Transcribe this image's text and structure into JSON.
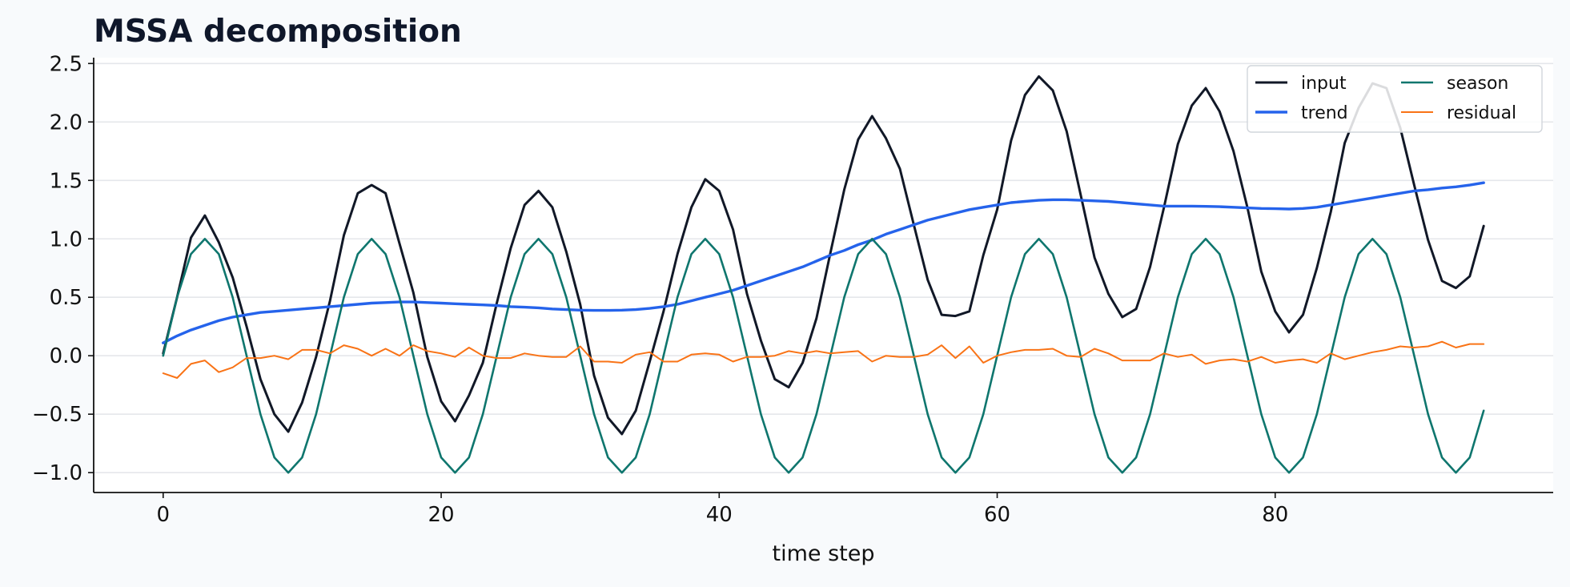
{
  "chart_data": {
    "type": "line",
    "title": "MSSA decomposition",
    "xlabel": "time step",
    "ylabel": "",
    "xlim": [
      -5,
      100
    ],
    "ylim": [
      -1.17,
      2.55
    ],
    "xticks": [
      0,
      20,
      40,
      60,
      80
    ],
    "xtick_labels": [
      "0",
      "20",
      "40",
      "60",
      "80"
    ],
    "yticks": [
      -1.0,
      -0.5,
      0.0,
      0.5,
      1.0,
      1.5,
      2.0,
      2.5
    ],
    "ytick_labels": [
      "−1.0",
      "−0.5",
      "0.0",
      "0.5",
      "1.0",
      "1.5",
      "2.0",
      "2.5"
    ],
    "grid": "horizontal",
    "legend": {
      "placement": "top-right",
      "columns": 2
    },
    "x": [
      0,
      1,
      2,
      3,
      4,
      5,
      6,
      7,
      8,
      9,
      10,
      11,
      12,
      13,
      14,
      15,
      16,
      17,
      18,
      19,
      20,
      21,
      22,
      23,
      24,
      25,
      26,
      27,
      28,
      29,
      30,
      31,
      32,
      33,
      34,
      35,
      36,
      37,
      38,
      39,
      40,
      41,
      42,
      43,
      44,
      45,
      46,
      47,
      48,
      49,
      50,
      51,
      52,
      53,
      54,
      55,
      56,
      57,
      58,
      59,
      60,
      61,
      62,
      63,
      64,
      65,
      66,
      67,
      68,
      69,
      70,
      71,
      72,
      73,
      74,
      75,
      76,
      77,
      78,
      79,
      80,
      81,
      82,
      83,
      84,
      85,
      86,
      87,
      88,
      89,
      90,
      91,
      92,
      93,
      94,
      95
    ],
    "series": [
      {
        "name": "input",
        "color": "#111827",
        "width": 3,
        "values": [
          0.02,
          0.5,
          1.01,
          1.2,
          0.97,
          0.67,
          0.25,
          -0.2,
          -0.5,
          -0.65,
          -0.4,
          -0.01,
          0.47,
          1.03,
          1.39,
          1.46,
          1.39,
          0.96,
          0.54,
          -0.01,
          -0.39,
          -0.56,
          -0.34,
          -0.06,
          0.45,
          0.92,
          1.29,
          1.41,
          1.27,
          0.89,
          0.44,
          -0.17,
          -0.53,
          -0.67,
          -0.47,
          -0.05,
          0.38,
          0.87,
          1.27,
          1.51,
          1.41,
          1.08,
          0.53,
          0.13,
          -0.2,
          -0.27,
          -0.06,
          0.32,
          0.88,
          1.42,
          1.85,
          2.05,
          1.86,
          1.6,
          1.12,
          0.65,
          0.35,
          0.34,
          0.38,
          0.86,
          1.25,
          1.84,
          2.23,
          2.39,
          2.27,
          1.92,
          1.38,
          0.84,
          0.53,
          0.33,
          0.4,
          0.76,
          1.27,
          1.81,
          2.14,
          2.29,
          2.09,
          1.75,
          1.27,
          0.72,
          0.38,
          0.2,
          0.35,
          0.75,
          1.23,
          1.82,
          2.12,
          2.33,
          2.29,
          1.95,
          1.46,
          0.99,
          0.64,
          0.58,
          0.68,
          1.11
        ]
      },
      {
        "name": "trend",
        "color": "#2563eb",
        "width": 3.4,
        "values": [
          0.11,
          0.17,
          0.22,
          0.26,
          0.3,
          0.33,
          0.35,
          0.37,
          0.38,
          0.39,
          0.4,
          0.41,
          0.42,
          0.43,
          0.44,
          0.45,
          0.455,
          0.46,
          0.46,
          0.455,
          0.45,
          0.445,
          0.44,
          0.435,
          0.43,
          0.42,
          0.415,
          0.41,
          0.4,
          0.395,
          0.39,
          0.388,
          0.388,
          0.39,
          0.395,
          0.405,
          0.42,
          0.44,
          0.47,
          0.5,
          0.53,
          0.56,
          0.6,
          0.64,
          0.68,
          0.72,
          0.76,
          0.81,
          0.86,
          0.9,
          0.95,
          0.99,
          1.04,
          1.08,
          1.12,
          1.16,
          1.19,
          1.22,
          1.25,
          1.27,
          1.29,
          1.31,
          1.32,
          1.33,
          1.335,
          1.335,
          1.33,
          1.325,
          1.32,
          1.31,
          1.3,
          1.29,
          1.28,
          1.28,
          1.28,
          1.278,
          1.275,
          1.27,
          1.265,
          1.26,
          1.258,
          1.255,
          1.26,
          1.27,
          1.29,
          1.31,
          1.33,
          1.35,
          1.37,
          1.39,
          1.41,
          1.42,
          1.435,
          1.445,
          1.46,
          1.48
        ]
      },
      {
        "name": "season",
        "color": "#0f766e",
        "width": 2.6,
        "values": [
          0.0,
          0.5,
          0.87,
          1.0,
          0.87,
          0.5,
          0.0,
          -0.5,
          -0.87,
          -1.0,
          -0.87,
          -0.5,
          0.0,
          0.5,
          0.87,
          1.0,
          0.87,
          0.5,
          0.0,
          -0.5,
          -0.87,
          -1.0,
          -0.87,
          -0.5,
          0.0,
          0.5,
          0.87,
          1.0,
          0.87,
          0.5,
          0.0,
          -0.5,
          -0.87,
          -1.0,
          -0.87,
          -0.5,
          0.0,
          0.5,
          0.87,
          1.0,
          0.87,
          0.5,
          0.0,
          -0.5,
          -0.87,
          -1.0,
          -0.87,
          -0.5,
          0.0,
          0.5,
          0.87,
          1.0,
          0.87,
          0.5,
          0.0,
          -0.5,
          -0.87,
          -1.0,
          -0.87,
          -0.5,
          0.0,
          0.5,
          0.87,
          1.0,
          0.87,
          0.5,
          0.0,
          -0.5,
          -0.87,
          -1.0,
          -0.87,
          -0.5,
          0.0,
          0.5,
          0.87,
          1.0,
          0.87,
          0.5,
          0.0,
          -0.5,
          -0.87,
          -1.0,
          -0.87,
          -0.5,
          0.0,
          0.5,
          0.87,
          1.0,
          0.87,
          0.5,
          0.0,
          -0.5,
          -0.87,
          -1.0,
          -0.87,
          -0.47
        ]
      },
      {
        "name": "residual",
        "color": "#f97316",
        "width": 2,
        "values": [
          -0.15,
          -0.19,
          -0.07,
          -0.04,
          -0.14,
          -0.1,
          -0.02,
          -0.02,
          0.0,
          -0.03,
          0.05,
          0.05,
          0.02,
          0.09,
          0.06,
          0.0,
          0.06,
          0.0,
          0.09,
          0.04,
          0.02,
          -0.01,
          0.07,
          0.0,
          -0.02,
          -0.02,
          0.02,
          0.0,
          -0.01,
          -0.01,
          0.08,
          -0.05,
          -0.05,
          -0.06,
          0.01,
          0.03,
          -0.05,
          -0.05,
          0.01,
          0.02,
          0.01,
          -0.05,
          -0.01,
          -0.01,
          0.0,
          0.04,
          0.02,
          0.04,
          0.02,
          0.03,
          0.04,
          -0.05,
          0.0,
          -0.01,
          -0.01,
          0.01,
          0.09,
          -0.02,
          0.08,
          -0.06,
          0.0,
          0.03,
          0.05,
          0.05,
          0.06,
          0.0,
          -0.01,
          0.06,
          0.02,
          -0.04,
          -0.04,
          -0.04,
          0.02,
          -0.01,
          0.01,
          -0.07,
          -0.04,
          -0.03,
          -0.05,
          -0.01,
          -0.06,
          -0.04,
          -0.03,
          -0.06,
          0.02,
          -0.03,
          0.0,
          0.03,
          0.05,
          0.08,
          0.07,
          0.08,
          0.12,
          0.07,
          0.1,
          0.1
        ]
      }
    ]
  }
}
